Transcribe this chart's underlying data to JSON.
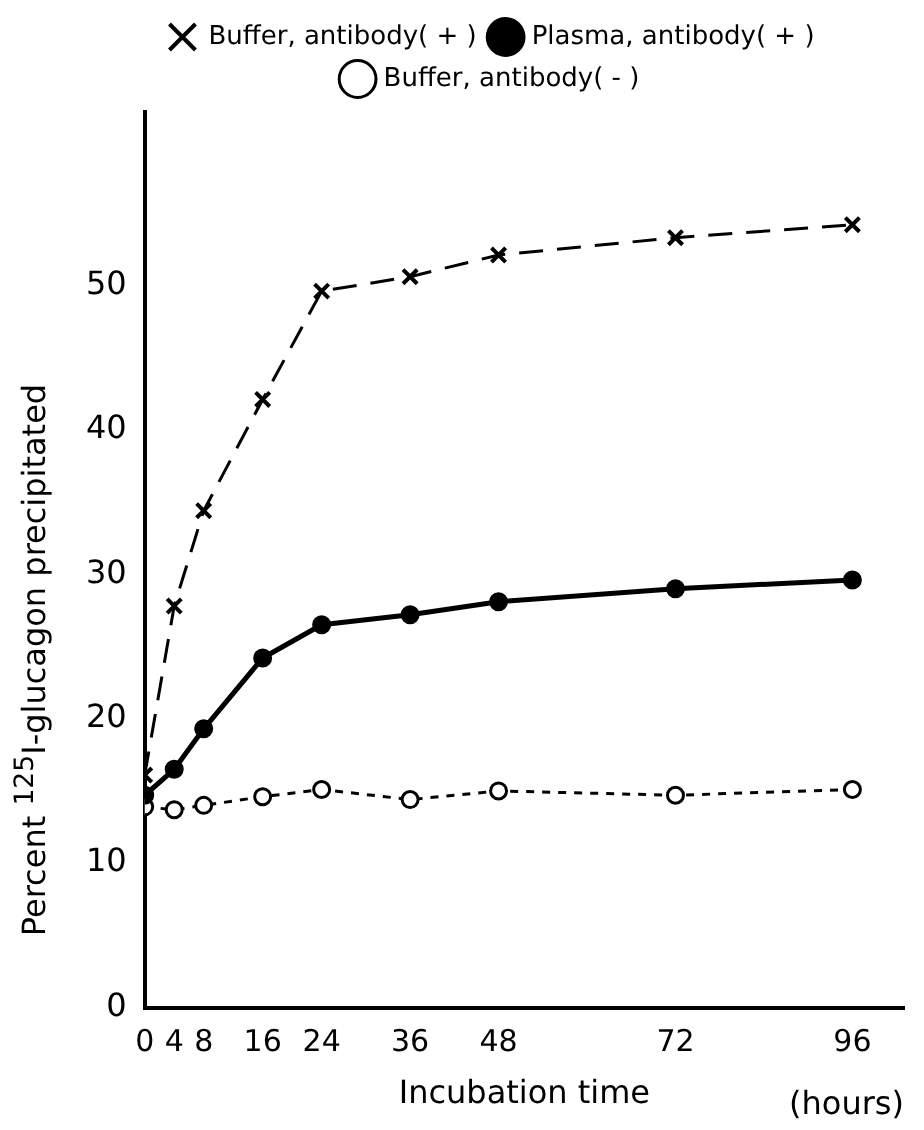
{
  "chart_data": {
    "type": "line",
    "xlabel": "Incubation time",
    "ylabel": "Percent $^{125}$I-glucagon precipitated",
    "annotations": [
      "(hours)"
    ],
    "x": [
      0,
      4,
      8,
      16,
      24,
      36,
      48,
      72,
      96
    ],
    "series": [
      {
        "name": "Buffer, antibody( + )",
        "color": "#000000",
        "marker": "cross",
        "line_style": "dashed",
        "values": [
          16.1,
          27.8,
          34.4,
          42.1,
          49.6,
          50.6,
          52.1,
          53.3,
          54.2
        ]
      },
      {
        "name": "Plasma, antibody( + )",
        "color": "#000000",
        "marker": "circle",
        "line_style": "solid",
        "values": [
          14.7,
          16.5,
          19.3,
          24.2,
          26.5,
          27.2,
          28.1,
          29.0,
          29.6
        ]
      },
      {
        "name": "Buffer, antibody( - )",
        "color": "#000000",
        "marker": "circle",
        "line_style": "dotted",
        "values": [
          13.9,
          13.7,
          14.0,
          14.6,
          15.1,
          14.4,
          15.0,
          14.7,
          15.1
        ]
      }
    ],
    "xlim": [
      0,
      103
    ],
    "xticks": [
      0,
      4,
      8,
      16,
      24,
      36,
      48,
      72,
      96
    ],
    "ylim": [
      0,
      62
    ],
    "yticks": [
      0,
      10,
      20,
      30,
      40,
      50
    ],
    "grid": false,
    "legend": "top"
  }
}
